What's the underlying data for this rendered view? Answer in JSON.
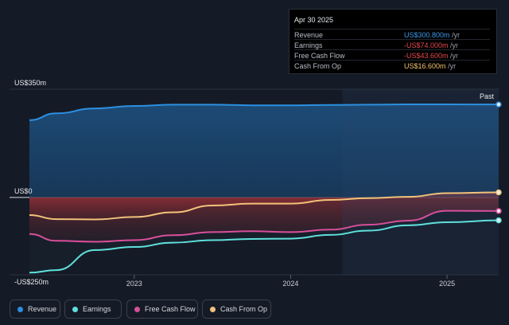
{
  "tooltip": {
    "date": "Apr 30 2025",
    "rows": [
      {
        "name": "Revenue",
        "value": "US$300.800m",
        "unit": "/yr",
        "color": "#3d9be9"
      },
      {
        "name": "Earnings",
        "value": "-US$74.000m",
        "unit": "/yr",
        "color": "#e5484d"
      },
      {
        "name": "Free Cash Flow",
        "value": "-US$43.600m",
        "unit": "/yr",
        "color": "#e5484d"
      },
      {
        "name": "Cash From Op",
        "value": "US$16.600m",
        "unit": "/yr",
        "color": "#f5c26b"
      }
    ]
  },
  "legend": [
    {
      "label": "Revenue",
      "color": "#2d8fe0"
    },
    {
      "label": "Earnings",
      "color": "#5fe0dc"
    },
    {
      "label": "Free Cash Flow",
      "color": "#d84f9a"
    },
    {
      "label": "Cash From Op",
      "color": "#f2c27a"
    }
  ],
  "past_label": "Past",
  "chart_data": {
    "type": "area",
    "y_tick_labels": [
      "US$350m",
      "US$0",
      "-US$250m"
    ],
    "ylim": [
      -250,
      350
    ],
    "x_tick_labels": [
      "2023",
      "2024",
      "2025"
    ],
    "xlim": [
      2022.33,
      2025.33
    ],
    "x": [
      2022.33,
      2022.5,
      2022.75,
      2023.0,
      2023.25,
      2023.5,
      2023.75,
      2024.0,
      2024.25,
      2024.5,
      2024.75,
      2025.0,
      2025.33
    ],
    "series": [
      {
        "name": "Revenue",
        "color": "#2d8fe0",
        "values": [
          250,
          272,
          288,
          296,
          300,
          300,
          298,
          298,
          299,
          300,
          301,
          301,
          300.8
        ]
      },
      {
        "name": "Earnings",
        "color": "#5fe0dc",
        "values": [
          -243,
          -235,
          -170,
          -160,
          -146,
          -138,
          -134,
          -133,
          -121,
          -107,
          -90,
          -80,
          -74
        ]
      },
      {
        "name": "Free Cash Flow",
        "color": "#d84f9a",
        "values": [
          -118,
          -140,
          -143,
          -138,
          -122,
          -112,
          -109,
          -112,
          -104,
          -88,
          -75,
          -43,
          -43.6
        ]
      },
      {
        "name": "Cash From Op",
        "color": "#f2c27a",
        "values": [
          -57,
          -70,
          -71,
          -63,
          -48,
          -26,
          -20,
          -20,
          -8,
          -2,
          2,
          14,
          16.6
        ]
      }
    ]
  }
}
